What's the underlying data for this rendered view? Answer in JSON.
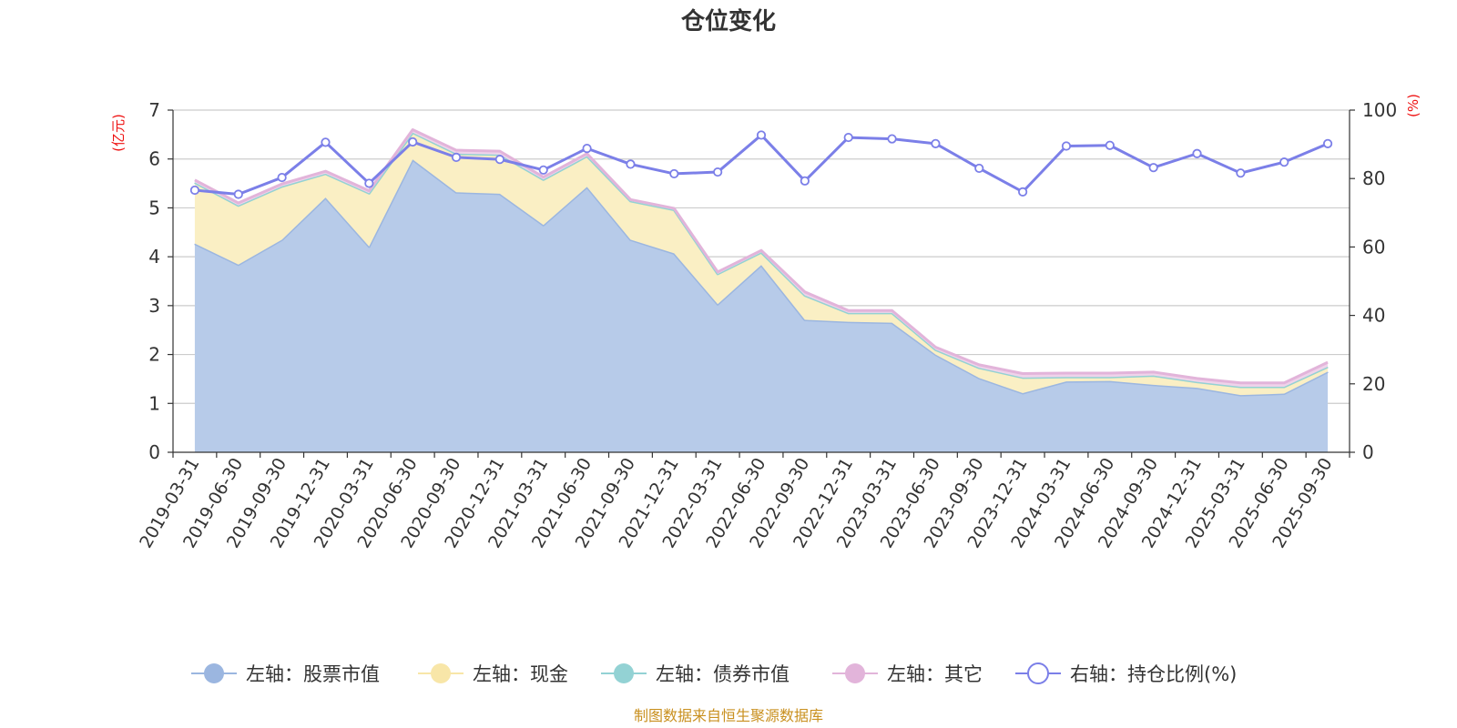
{
  "chart_data": {
    "type": "area",
    "title": "仓位变化",
    "y_left_unit": "(亿元)",
    "y_right_unit": "(%)",
    "y_left_range": [
      0,
      7
    ],
    "y_left_ticks": [
      0,
      1,
      2,
      3,
      4,
      5,
      6,
      7
    ],
    "y_right_range": [
      0,
      100
    ],
    "y_right_ticks": [
      0,
      20,
      40,
      60,
      80,
      100
    ],
    "grid": true,
    "legend_position": "bottom",
    "categories": [
      "2019-03-31",
      "2019-06-30",
      "2019-09-30",
      "2019-12-31",
      "2020-03-31",
      "2020-06-30",
      "2020-09-30",
      "2020-12-31",
      "2021-03-31",
      "2021-06-30",
      "2021-09-30",
      "2021-12-31",
      "2022-03-31",
      "2022-06-30",
      "2022-09-30",
      "2022-12-31",
      "2023-03-31",
      "2023-06-30",
      "2023-09-30",
      "2023-12-31",
      "2024-03-31",
      "2024-06-30",
      "2024-09-30",
      "2024-12-31",
      "2025-03-31",
      "2025-06-30",
      "2025-09-30"
    ],
    "series": [
      {
        "name": "左轴：股票市值",
        "axis": "left",
        "color": "#9bb6e0",
        "fill": "#b7cbe9",
        "values": [
          4.27,
          3.84,
          4.35,
          5.21,
          4.21,
          5.99,
          5.32,
          5.29,
          4.65,
          5.43,
          4.35,
          4.07,
          3.03,
          3.83,
          2.71,
          2.67,
          2.65,
          2.0,
          1.52,
          1.21,
          1.45,
          1.46,
          1.38,
          1.32,
          1.17,
          1.2,
          1.65
        ]
      },
      {
        "name": "左轴：现金",
        "axis": "left",
        "color": "#f8e6a8",
        "fill": "#faefc4",
        "values": [
          1.25,
          1.21,
          1.09,
          0.49,
          1.09,
          0.55,
          0.79,
          0.8,
          0.93,
          0.63,
          0.79,
          0.89,
          0.62,
          0.26,
          0.5,
          0.18,
          0.2,
          0.1,
          0.21,
          0.32,
          0.09,
          0.08,
          0.19,
          0.12,
          0.17,
          0.14,
          0.1
        ]
      },
      {
        "name": "左轴：债券市值",
        "axis": "left",
        "color": "#93d2d4",
        "fill": "#a9dcdd",
        "values": [
          0,
          0,
          0,
          0,
          0,
          0,
          0,
          0,
          0,
          0,
          0,
          0,
          0,
          0,
          0,
          0,
          0,
          0,
          0,
          0,
          0,
          0,
          0,
          0,
          0,
          0,
          0
        ]
      },
      {
        "name": "左轴：其它",
        "axis": "left",
        "color": "#e2b4da",
        "fill": "#efd3ea",
        "values": [
          0.05,
          0.05,
          0.05,
          0.05,
          0.05,
          0.06,
          0.07,
          0.07,
          0.05,
          0.05,
          0.03,
          0.03,
          0.04,
          0.04,
          0.07,
          0.05,
          0.05,
          0.05,
          0.06,
          0.08,
          0.08,
          0.08,
          0.07,
          0.07,
          0.08,
          0.08,
          0.09
        ]
      },
      {
        "name": "右轴：持仓比例(%)",
        "axis": "right",
        "color": "#7b7fe8",
        "values": [
          76.6,
          75.4,
          80.3,
          90.6,
          78.6,
          90.7,
          86.2,
          85.6,
          82.5,
          88.8,
          84.2,
          81.4,
          81.9,
          92.7,
          79.3,
          92.0,
          91.6,
          90.2,
          83.0,
          76.1,
          89.5,
          89.7,
          83.2,
          87.3,
          81.6,
          84.8,
          90.2
        ]
      }
    ],
    "source_note": "制图数据来自恒生聚源数据库"
  }
}
